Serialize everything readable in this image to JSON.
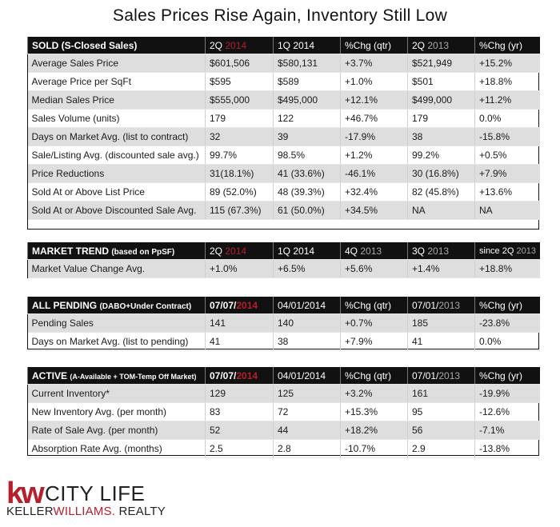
{
  "title": "Sales Prices Rise Again, Inventory Still Low",
  "colors": {
    "accent": "#b61f2b",
    "header_bg": "#111111",
    "alt_row": "#dedede",
    "muted_year": "#a9a9a9"
  },
  "sold": {
    "header": {
      "cat": "SOLD (S-Closed Sales)",
      "c1_q": "2Q",
      "c1_y": "2014",
      "c2": "1Q 2014",
      "c3": "%Chg (qtr)",
      "c4_q": "2Q",
      "c4_y": "2013",
      "c5": "%Chg (yr)"
    },
    "rows": [
      [
        "Average Sales Price",
        "$601,506",
        "$580,131",
        "+3.7%",
        "$521,949",
        "+15.2%"
      ],
      [
        "Average Price per SqFt",
        "$595",
        "$589",
        "+1.0%",
        "$501",
        "+18.8%"
      ],
      [
        "Median Sales Price",
        "$555,000",
        "$495,000",
        "+12.1%",
        "$499,000",
        "+11.2%"
      ],
      [
        "Sales Volume  (units)",
        "179",
        "122",
        "+46.7%",
        "179",
        "0.0%"
      ],
      [
        "Days on Market Avg. (list to contract)",
        "32",
        "39",
        "-17.9%",
        "38",
        "-15.8%"
      ],
      [
        "Sale/Listing Avg. (discounted sale avg.)",
        "99.7%",
        "98.5%",
        "+1.2%",
        "99.2%",
        "+0.5%"
      ],
      [
        "Price Reductions",
        "31(18.1%)",
        "41 (33.6%)",
        "-46.1%",
        "30 (16.8%)",
        "+7.9%"
      ],
      [
        "Sold At or Above List Price",
        "89 (52.0%)",
        "48 (39.3%)",
        "+32.4%",
        "82 (45.8%)",
        "+13.6%"
      ],
      [
        "Sold At or Above Discounted Sale Avg.",
        "115 (67.3%)",
        "61 (50.0%)",
        "+34.5%",
        "NA",
        "NA"
      ]
    ]
  },
  "trend": {
    "header": {
      "cat": "MARKET TREND",
      "cat_sub": "(based on PpSF)",
      "c1_q": "2Q",
      "c1_y": "2014",
      "c2": "1Q 2014",
      "c3_q": "4Q",
      "c3_y": "2013",
      "c4_q": "3Q",
      "c4_y": "2013",
      "c5_a": "since 2Q",
      "c5_y": "2013"
    },
    "rows": [
      [
        "Market Value Change Avg.",
        "+1.0%",
        "+6.5%",
        "+5.6%",
        "+1.4%",
        "+18.8%"
      ]
    ]
  },
  "pending": {
    "header": {
      "cat": "ALL PENDING",
      "cat_sub": "(DABO+Under Contract)",
      "c1_d": "07/07/",
      "c1_y": "2014",
      "c2": "04/01/2014",
      "c3": "%Chg (qtr)",
      "c4_d": "07/01/",
      "c4_y": "2013",
      "c5": "%Chg (yr)"
    },
    "rows": [
      [
        "Pending Sales",
        "141",
        "140",
        "+0.7%",
        "185",
        "-23.8%"
      ],
      [
        "Days on Market Avg. (list to pending)",
        "41",
        "38",
        "+7.9%",
        "41",
        "0.0%"
      ]
    ]
  },
  "active": {
    "header": {
      "cat": "ACTIVE",
      "cat_sub": "(A-Available + TOM-Temp Off Market)",
      "c1_d": "07/07/",
      "c1_y": "2014",
      "c2": "04/01/2014",
      "c3": "%Chg (qtr)",
      "c4_d": "07/01/",
      "c4_y": "2013",
      "c5": "%Chg (yr)"
    },
    "rows": [
      [
        "Current Inventory*",
        "129",
        "125",
        "+3.2%",
        "161",
        "-19.9%"
      ],
      [
        "New Inventory Avg. (per month)",
        "83",
        "72",
        "+15.3%",
        "95",
        "-12.6%"
      ],
      [
        "Rate of Sale Avg. (per month)",
        "52",
        "44",
        "+18.2%",
        "56",
        "-7.1%"
      ],
      [
        "Absorption Rate Avg. (months)",
        "2.5",
        "2.8",
        "-10.7%",
        "2.9",
        "-13.8%"
      ]
    ]
  },
  "logo": {
    "kw": "kw",
    "city": "CITY LIFE",
    "keller": "KELLER",
    "williams": "WILLIAMS.",
    "realty": "REALTY"
  }
}
